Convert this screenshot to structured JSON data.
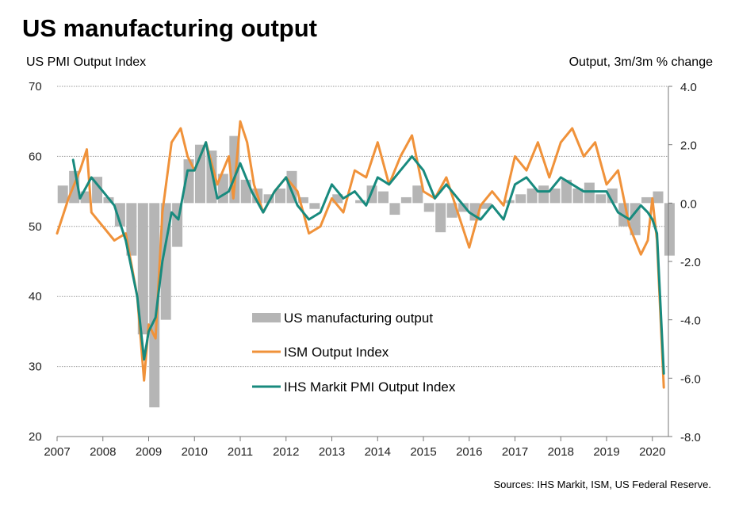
{
  "title": "US manufacturing output",
  "left_axis_title": "US PMI Output Index",
  "right_axis_title": "Output, 3m/3m % change",
  "source": "Sources: IHS Markit, ISM, US Federal Reserve.",
  "colors": {
    "bars": "#b5b5b5",
    "ism": "#f0923a",
    "ihs": "#188a7e",
    "grid": "#9a9a9a"
  },
  "chart_data": {
    "type": "line",
    "x_ticks": [
      "2007",
      "2008",
      "2009",
      "2010",
      "2011",
      "2012",
      "2013",
      "2014",
      "2015",
      "2016",
      "2017",
      "2018",
      "2019",
      "2020"
    ],
    "left_axis": {
      "min": 20,
      "max": 70,
      "ticks": [
        "20",
        "30",
        "40",
        "50",
        "60",
        "70"
      ]
    },
    "right_axis": {
      "min": -8,
      "max": 4,
      "ticks": [
        "-8.0",
        "-6.0",
        "-4.0",
        "-2.0",
        "0.0",
        "2.0",
        "4.0"
      ]
    },
    "grid": true,
    "legend_position": "center",
    "series": [
      {
        "name": "US manufacturing output",
        "type": "bar",
        "axis": "right",
        "x": [
          2007.0,
          2007.25,
          2007.5,
          2007.75,
          2008.0,
          2008.25,
          2008.5,
          2008.75,
          2009.0,
          2009.25,
          2009.5,
          2009.75,
          2010.0,
          2010.25,
          2010.5,
          2010.75,
          2011.0,
          2011.25,
          2011.5,
          2011.75,
          2012.0,
          2012.25,
          2012.5,
          2012.75,
          2013.0,
          2013.25,
          2013.5,
          2013.75,
          2014.0,
          2014.25,
          2014.5,
          2014.75,
          2015.0,
          2015.25,
          2015.5,
          2015.75,
          2016.0,
          2016.25,
          2016.5,
          2016.75,
          2017.0,
          2017.25,
          2017.5,
          2017.75,
          2018.0,
          2018.25,
          2018.5,
          2018.75,
          2019.0,
          2019.25,
          2019.5,
          2019.75,
          2020.0,
          2020.25
        ],
        "values": [
          0.6,
          1.1,
          0.4,
          0.9,
          0.2,
          -0.8,
          -1.8,
          -4.5,
          -7.0,
          -4.0,
          -1.5,
          1.5,
          2.0,
          1.8,
          1.0,
          2.3,
          0.8,
          0.5,
          0.3,
          0.5,
          1.1,
          0.2,
          -0.2,
          0.0,
          0.3,
          0.0,
          0.1,
          0.6,
          0.4,
          -0.4,
          0.2,
          0.6,
          -0.3,
          -1.0,
          -0.5,
          -0.3,
          -0.6,
          -0.2,
          0.0,
          0.1,
          0.3,
          0.5,
          0.6,
          0.5,
          0.8,
          0.5,
          0.7,
          0.3,
          0.5,
          -0.8,
          -1.1,
          0.2,
          0.4,
          -1.8
        ]
      },
      {
        "name": "ISM Output Index",
        "type": "line",
        "axis": "left",
        "x": [
          2007.0,
          2007.25,
          2007.5,
          2007.65,
          2007.75,
          2008.0,
          2008.25,
          2008.5,
          2008.75,
          2008.9,
          2009.0,
          2009.15,
          2009.3,
          2009.5,
          2009.7,
          2009.85,
          2010.0,
          2010.25,
          2010.5,
          2010.75,
          2010.85,
          2011.0,
          2011.15,
          2011.3,
          2011.5,
          2011.75,
          2012.0,
          2012.25,
          2012.5,
          2012.75,
          2013.0,
          2013.25,
          2013.5,
          2013.75,
          2014.0,
          2014.25,
          2014.5,
          2014.75,
          2015.0,
          2015.25,
          2015.5,
          2015.75,
          2016.0,
          2016.25,
          2016.5,
          2016.75,
          2017.0,
          2017.25,
          2017.5,
          2017.75,
          2018.0,
          2018.25,
          2018.5,
          2018.75,
          2019.0,
          2019.25,
          2019.5,
          2019.75,
          2019.9,
          2020.0,
          2020.1,
          2020.25
        ],
        "values": [
          49,
          54,
          58,
          61,
          52,
          50,
          48,
          49,
          40,
          28,
          36,
          34,
          52,
          62,
          64,
          60,
          58,
          62,
          56,
          60,
          54,
          65,
          62,
          56,
          52,
          55,
          57,
          55,
          49,
          50,
          54,
          52,
          58,
          57,
          62,
          56,
          60,
          63,
          55,
          54,
          57,
          52,
          47,
          53,
          55,
          53,
          60,
          58,
          62,
          57,
          62,
          64,
          60,
          62,
          56,
          58,
          50,
          46,
          48,
          54,
          48,
          27
        ]
      },
      {
        "name": "IHS Markit PMI Output Index",
        "type": "line",
        "axis": "left",
        "x": [
          2007.0,
          2007.25,
          2007.35,
          2007.5,
          2007.75,
          2008.0,
          2008.25,
          2008.5,
          2008.75,
          2008.9,
          2009.0,
          2009.15,
          2009.3,
          2009.5,
          2009.65,
          2009.85,
          2010.0,
          2010.25,
          2010.5,
          2010.75,
          2011.0,
          2011.25,
          2011.5,
          2011.75,
          2012.0,
          2012.25,
          2012.5,
          2012.75,
          2013.0,
          2013.25,
          2013.5,
          2013.75,
          2014.0,
          2014.25,
          2014.5,
          2014.75,
          2015.0,
          2015.25,
          2015.5,
          2015.75,
          2016.0,
          2016.25,
          2016.5,
          2016.75,
          2017.0,
          2017.25,
          2017.5,
          2017.75,
          2018.0,
          2018.25,
          2018.5,
          2018.75,
          2019.0,
          2019.25,
          2019.5,
          2019.75,
          2019.9,
          2020.0,
          2020.1,
          2020.25
        ],
        "values": [
          null,
          null,
          59.5,
          54,
          57,
          55,
          53,
          48,
          40,
          31,
          35,
          37,
          45,
          52,
          51,
          58,
          58,
          62,
          54,
          55,
          59,
          55,
          52,
          55,
          57,
          53,
          51,
          52,
          56,
          54,
          55,
          53,
          57,
          56,
          58,
          60,
          58,
          54,
          56,
          54,
          52,
          51,
          53,
          51,
          56,
          57,
          55,
          55,
          57,
          56,
          55,
          55,
          55,
          52,
          51,
          53,
          52,
          51,
          49,
          29
        ]
      }
    ]
  }
}
